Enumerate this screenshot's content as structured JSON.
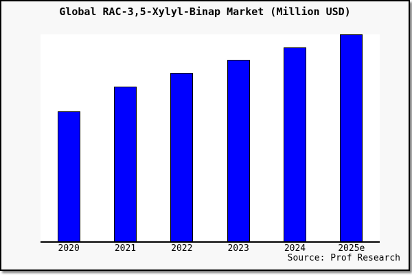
{
  "colors": {
    "bar_fill": "#0000ff",
    "bar_border": "#000000",
    "page_bg": "#f8f8f8",
    "plot_bg": "#ffffff",
    "axis": "#000000",
    "frame_border": "#000000"
  },
  "chart_data": {
    "type": "bar",
    "title": "Global RAC-3,5-Xylyl-Binap Market (Million USD)",
    "categories": [
      "2020",
      "2021",
      "2022",
      "2023",
      "2024",
      "2025e"
    ],
    "values": [
      62.8,
      74.8,
      81.4,
      87.7,
      93.7,
      100
    ],
    "value_scale": "relative index estimated from bar heights; no y-axis tick labels shown",
    "xlabel": "",
    "ylabel": "",
    "ylim": [
      0,
      100
    ],
    "grid": false,
    "legend": false,
    "y_axis_labels_visible": false,
    "source": "Source: Prof Research"
  }
}
